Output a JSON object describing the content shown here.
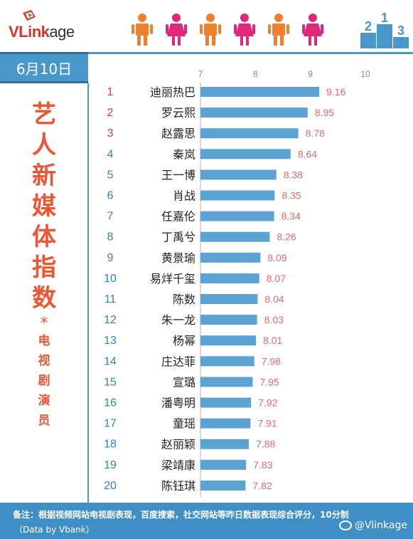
{
  "brand": {
    "logo_strong": "VLink",
    "logo_rest": "age"
  },
  "header": {
    "date": "6月10日"
  },
  "sidebar": {
    "title_chars": [
      "艺",
      "人",
      "新",
      "媒",
      "体",
      "指",
      "数"
    ],
    "star": "*",
    "subtitle_chars": [
      "电",
      "视",
      "剧",
      "演",
      "员"
    ]
  },
  "colors": {
    "accent_blue": "#4a97cb",
    "bar_blue": "#5ba3d3",
    "value_red": "#e86a6a",
    "title_red": "#ee5533",
    "rank_red": "#e0392d",
    "rank_blue": "#3a7fb8",
    "figure_orange": "#f08030",
    "figure_pink": "#e0287a"
  },
  "icons": {
    "figures": [
      "person-orange-icon",
      "person-pink-icon",
      "person-orange-icon",
      "person-pink-icon",
      "person-orange-icon",
      "person-pink-icon"
    ],
    "podium": "podium-icon",
    "weibo": "weibo-icon"
  },
  "chart_data": {
    "type": "bar",
    "orientation": "horizontal",
    "x_ticks": [
      7,
      8,
      9,
      10
    ],
    "xlim": [
      7,
      10
    ],
    "ranks": [
      "1",
      "2",
      "3",
      "4",
      "5",
      "6",
      "7",
      "8",
      "9",
      "10",
      "11",
      "12",
      "13",
      "14",
      "15",
      "16",
      "17",
      "18",
      "19",
      "20"
    ],
    "categories": [
      "迪丽热巴",
      "罗云熙",
      "赵露思",
      "秦岚",
      "王一博",
      "肖战",
      "任嘉伦",
      "丁禹兮",
      "黄景瑜",
      "易烊千玺",
      "陈数",
      "朱一龙",
      "杨幂",
      "庄达菲",
      "宣璐",
      "潘粤明",
      "童瑶",
      "赵丽颖",
      "梁靖康",
      "陈钰琪"
    ],
    "values": [
      9.16,
      8.95,
      8.78,
      8.64,
      8.38,
      8.35,
      8.34,
      8.26,
      8.09,
      8.07,
      8.04,
      8.03,
      8.01,
      7.98,
      7.95,
      7.92,
      7.91,
      7.88,
      7.83,
      7.82
    ],
    "value_labels": [
      "9.16",
      "8.95",
      "8.78",
      "8.64",
      "8.38",
      "8.35",
      "8.34",
      "8.26",
      "8.09",
      "8.07",
      "8.04",
      "8.03",
      "8.01",
      "7.98",
      "7.95",
      "7.92",
      "7.91",
      "7.88",
      "7.83",
      "7.82"
    ],
    "grid": false,
    "legend": "none"
  },
  "footer": {
    "note": "备注：根据视频网站电视剧表现，百度搜索，社交网站等昨日数据表现综合评分，10分制",
    "source": "（Data by Vbank）",
    "weibo": "@Vlinkage"
  }
}
